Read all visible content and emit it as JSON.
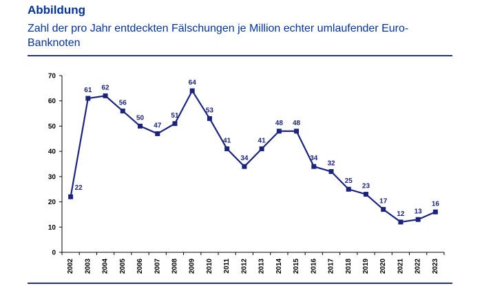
{
  "header": {
    "label": "Abbildung",
    "caption": "Zahl der pro Jahr entdeckten Fälschungen je Million echter umlaufender Euro-Banknoten"
  },
  "colors": {
    "header_label": "#003299",
    "caption": "#003299",
    "rule": "#1f2f8a",
    "series": "#1a237e",
    "axis": "#000000",
    "text": "#1a237e"
  },
  "chart_data": {
    "type": "line",
    "title": "",
    "xlabel": "",
    "ylabel": "",
    "ylim": [
      0,
      70
    ],
    "yticks": [
      0,
      10,
      20,
      30,
      40,
      50,
      60,
      70
    ],
    "grid": false,
    "legend": "none",
    "x": [
      "2002",
      "2003",
      "2004",
      "2005",
      "2006",
      "2007",
      "2008",
      "2009",
      "2010",
      "2011",
      "2012",
      "2013",
      "2014",
      "2015",
      "2016",
      "2017",
      "2018",
      "2019",
      "2020",
      "2021",
      "2022",
      "2023"
    ],
    "series": [
      {
        "values": [
          22,
          61,
          62,
          56,
          50,
          47,
          51,
          64,
          53,
          41,
          34,
          41,
          48,
          48,
          34,
          32,
          25,
          23,
          17,
          12,
          13,
          16
        ]
      }
    ]
  }
}
